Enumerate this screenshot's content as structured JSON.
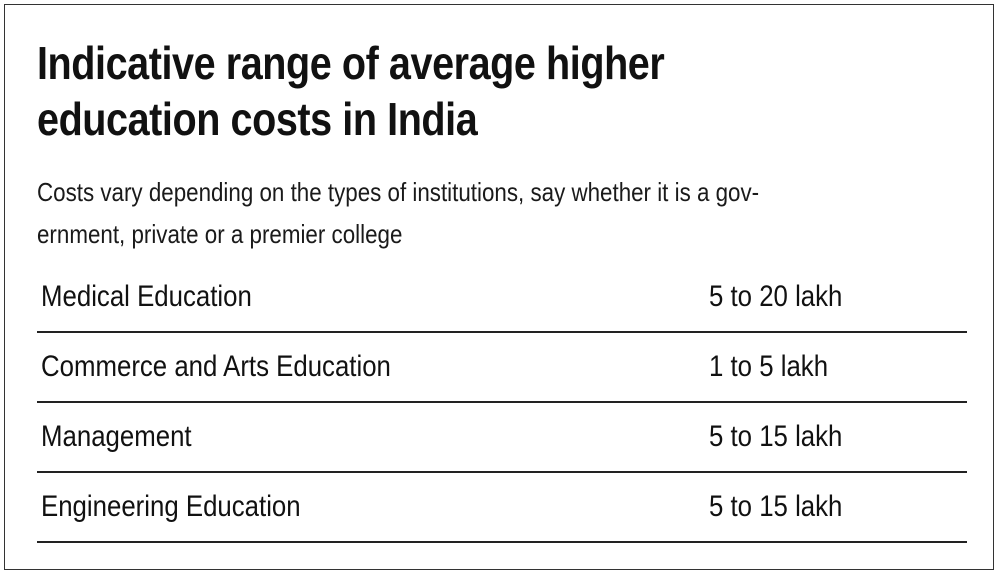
{
  "header": {
    "title_line1": "Indicative range of average higher",
    "title_line2": "education costs in India",
    "subtitle_line1": "Costs vary depending on the types of institutions, say whether it is a gov-",
    "subtitle_line2": "ernment, private or a premier college"
  },
  "rows": [
    {
      "label": "Medical Education",
      "value": "5 to 20 lakh"
    },
    {
      "label": "Commerce and Arts Education",
      "value": "1 to 5 lakh"
    },
    {
      "label": "Management",
      "value": "5 to 15 lakh"
    },
    {
      "label": "Engineering Education",
      "value": "5 to 15 lakh"
    }
  ]
}
